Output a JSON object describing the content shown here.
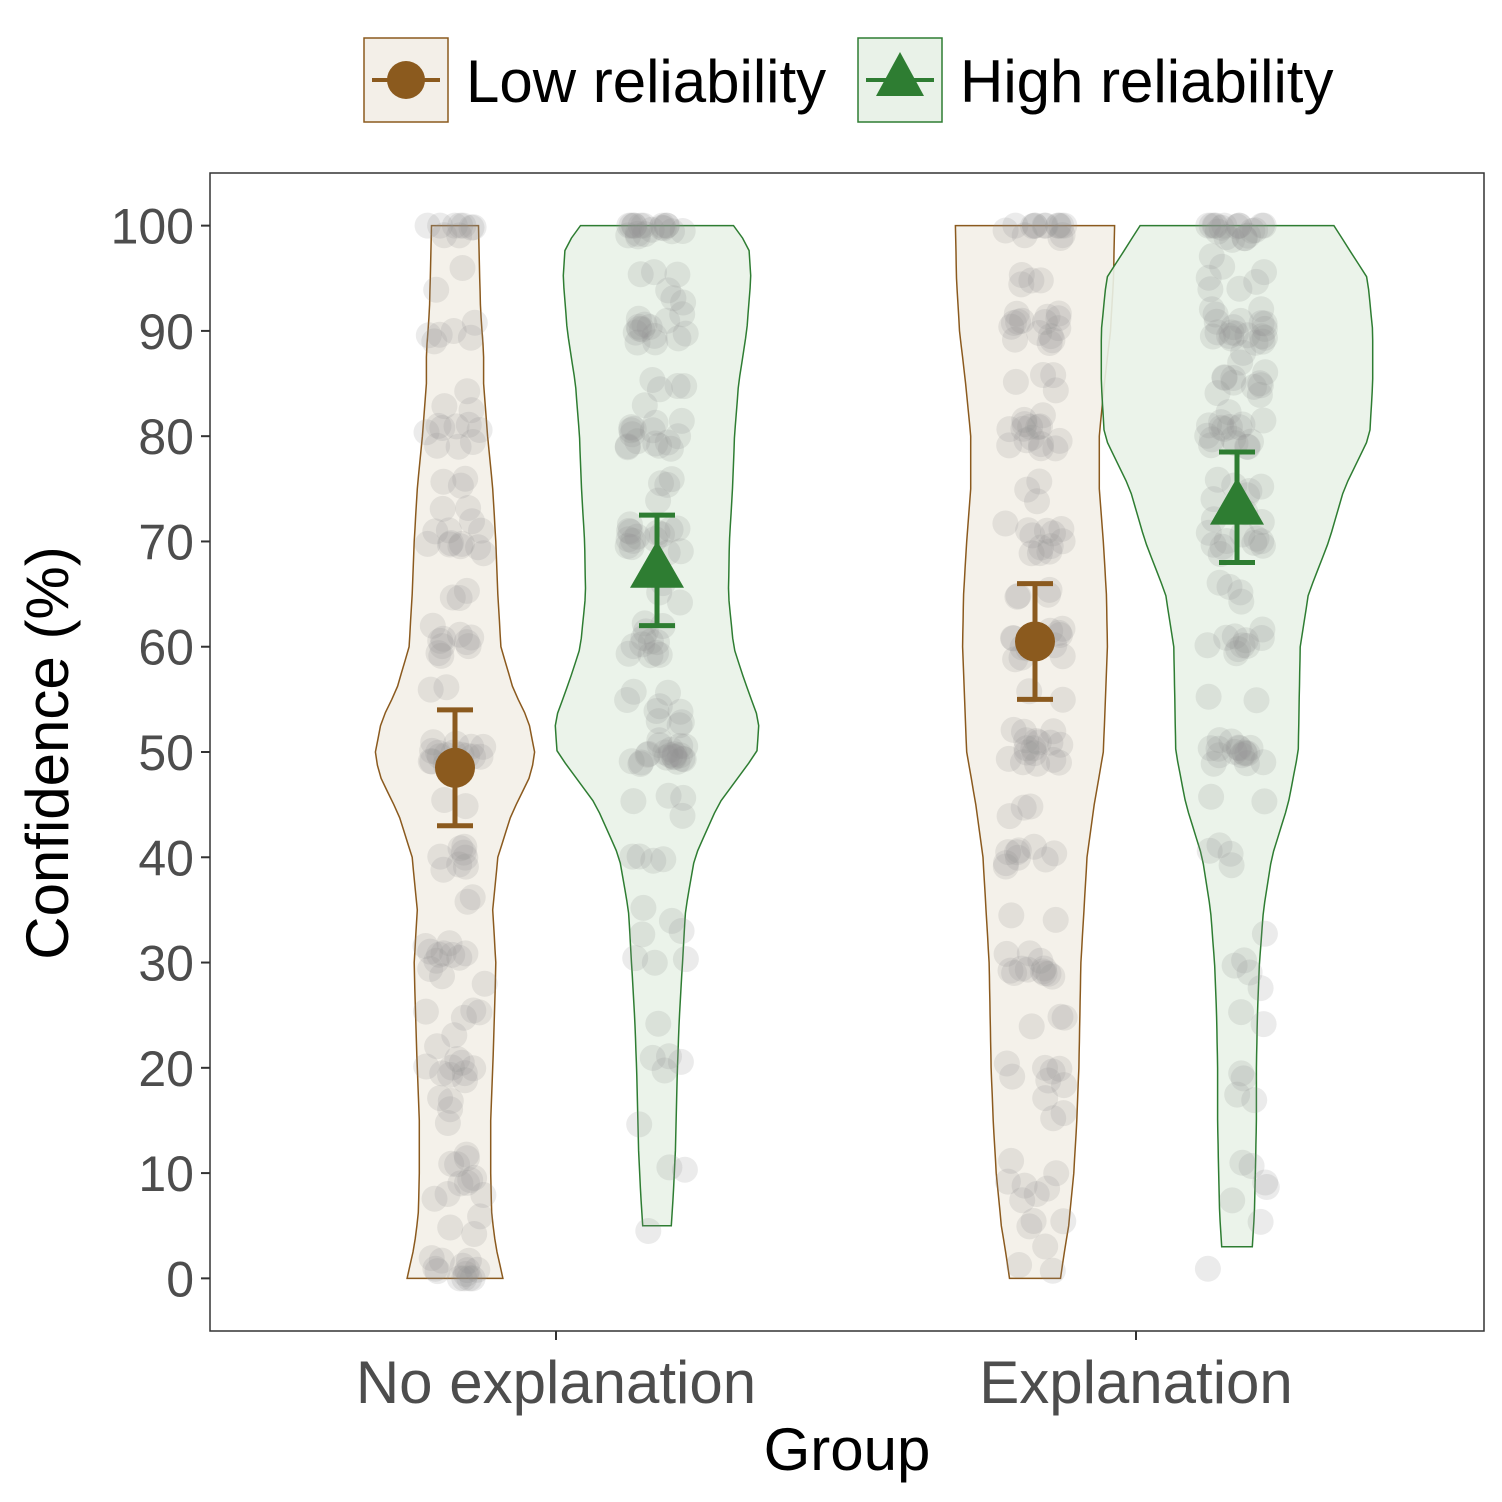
{
  "chart_data": {
    "type": "violin",
    "xlabel": "Group",
    "ylabel": "Confidence (%)",
    "ylim": [
      -5,
      105
    ],
    "yticks": [
      0,
      10,
      20,
      30,
      40,
      50,
      60,
      70,
      80,
      90,
      100
    ],
    "categories": [
      "No explanation",
      "Explanation"
    ],
    "legend_position": "top",
    "grid": false,
    "series": [
      {
        "name": "Low reliability",
        "color": "#8B5A1E",
        "fill": "#F3EFE8",
        "marker": "circle",
        "means": [
          48.5,
          60.5
        ],
        "ci": [
          [
            43,
            54
          ],
          [
            55,
            66
          ]
        ],
        "range": [
          [
            0,
            100
          ],
          [
            0,
            100
          ]
        ],
        "shape": [
          [
            [
              0,
              0.47
            ],
            [
              3,
              0.4
            ],
            [
              6,
              0.36
            ],
            [
              10,
              0.35
            ],
            [
              15,
              0.35
            ],
            [
              20,
              0.37
            ],
            [
              26,
              0.39
            ],
            [
              30,
              0.4
            ],
            [
              35,
              0.37
            ],
            [
              40,
              0.42
            ],
            [
              44,
              0.55
            ],
            [
              48,
              0.75
            ],
            [
              50,
              0.78
            ],
            [
              53,
              0.72
            ],
            [
              56,
              0.57
            ],
            [
              60,
              0.45
            ],
            [
              65,
              0.42
            ],
            [
              70,
              0.4
            ],
            [
              75,
              0.37
            ],
            [
              80,
              0.32
            ],
            [
              85,
              0.28
            ],
            [
              88,
              0.28
            ],
            [
              92,
              0.25
            ],
            [
              96,
              0.24
            ],
            [
              100,
              0.23
            ]
          ],
          [
            [
              0,
              0.25
            ],
            [
              2,
              0.28
            ],
            [
              5,
              0.33
            ],
            [
              10,
              0.38
            ],
            [
              15,
              0.41
            ],
            [
              20,
              0.43
            ],
            [
              25,
              0.44
            ],
            [
              30,
              0.45
            ],
            [
              35,
              0.48
            ],
            [
              40,
              0.51
            ],
            [
              45,
              0.58
            ],
            [
              50,
              0.67
            ],
            [
              55,
              0.69
            ],
            [
              60,
              0.71
            ],
            [
              65,
              0.7
            ],
            [
              70,
              0.67
            ],
            [
              75,
              0.63
            ],
            [
              80,
              0.63
            ],
            [
              85,
              0.68
            ],
            [
              90,
              0.74
            ],
            [
              95,
              0.77
            ],
            [
              100,
              0.78
            ]
          ]
        ]
      },
      {
        "name": "High reliability",
        "color": "#2E7D32",
        "fill": "#E9F2E8",
        "marker": "triangle",
        "means": [
          67.5,
          73.5
        ],
        "ci": [
          [
            62,
            72.5
          ],
          [
            68,
            78.5
          ]
        ],
        "range": [
          [
            5,
            100
          ],
          [
            3,
            100
          ]
        ],
        "shape": [
          [
            [
              5,
              0.14
            ],
            [
              8,
              0.16
            ],
            [
              12,
              0.18
            ],
            [
              16,
              0.19
            ],
            [
              20,
              0.2
            ],
            [
              25,
              0.22
            ],
            [
              30,
              0.25
            ],
            [
              35,
              0.28
            ],
            [
              40,
              0.37
            ],
            [
              45,
              0.6
            ],
            [
              50,
              0.98
            ],
            [
              53,
              1.0
            ],
            [
              57,
              0.85
            ],
            [
              60,
              0.75
            ],
            [
              65,
              0.7
            ],
            [
              70,
              0.71
            ],
            [
              75,
              0.74
            ],
            [
              80,
              0.76
            ],
            [
              85,
              0.8
            ],
            [
              90,
              0.88
            ],
            [
              95,
              0.92
            ],
            [
              98,
              0.9
            ],
            [
              100,
              0.75
            ]
          ],
          [
            [
              3,
              0.15
            ],
            [
              6,
              0.17
            ],
            [
              10,
              0.18
            ],
            [
              15,
              0.19
            ],
            [
              20,
              0.19
            ],
            [
              25,
              0.2
            ],
            [
              30,
              0.22
            ],
            [
              35,
              0.26
            ],
            [
              40,
              0.34
            ],
            [
              45,
              0.5
            ],
            [
              50,
              0.6
            ],
            [
              55,
              0.61
            ],
            [
              60,
              0.62
            ],
            [
              65,
              0.7
            ],
            [
              70,
              0.9
            ],
            [
              75,
              1.05
            ],
            [
              80,
              1.3
            ],
            [
              85,
              1.33
            ],
            [
              90,
              1.33
            ],
            [
              95,
              1.28
            ],
            [
              100,
              0.95
            ]
          ]
        ]
      }
    ],
    "jitter_points": {
      "color": "#999999",
      "levels": [
        0,
        1,
        2,
        5,
        8,
        10,
        12,
        15,
        18,
        20,
        22,
        25,
        28,
        30,
        32,
        35,
        38,
        40,
        42,
        45,
        48,
        50,
        52,
        55,
        58,
        60,
        62,
        65,
        68,
        70,
        72,
        75,
        78,
        80,
        82,
        85,
        88,
        90,
        92,
        95,
        98,
        100
      ],
      "weights": [
        [
          [
            0,
            10
          ],
          [
            2,
            3
          ],
          [
            5,
            3
          ],
          [
            8,
            3
          ],
          [
            10,
            6
          ],
          [
            12,
            2
          ],
          [
            15,
            2
          ],
          [
            18,
            2
          ],
          [
            20,
            9
          ],
          [
            22,
            2
          ],
          [
            25,
            4
          ],
          [
            28,
            2
          ],
          [
            30,
            8
          ],
          [
            32,
            2
          ],
          [
            35,
            2
          ],
          [
            40,
            8
          ],
          [
            45,
            2
          ],
          [
            50,
            16
          ],
          [
            55,
            2
          ],
          [
            60,
            8
          ],
          [
            62,
            2
          ],
          [
            65,
            3
          ],
          [
            70,
            10
          ],
          [
            72,
            3
          ],
          [
            75,
            3
          ],
          [
            80,
            9
          ],
          [
            82,
            2
          ],
          [
            85,
            1
          ],
          [
            90,
            6
          ],
          [
            95,
            2
          ],
          [
            100,
            9
          ]
        ],
        [
          [
            5,
            1
          ],
          [
            10,
            2
          ],
          [
            15,
            1
          ],
          [
            20,
            4
          ],
          [
            25,
            1
          ],
          [
            30,
            3
          ],
          [
            32,
            2
          ],
          [
            35,
            2
          ],
          [
            40,
            4
          ],
          [
            45,
            4
          ],
          [
            50,
            20
          ],
          [
            52,
            3
          ],
          [
            55,
            6
          ],
          [
            60,
            9
          ],
          [
            62,
            3
          ],
          [
            65,
            3
          ],
          [
            70,
            12
          ],
          [
            72,
            3
          ],
          [
            75,
            4
          ],
          [
            80,
            12
          ],
          [
            82,
            4
          ],
          [
            85,
            4
          ],
          [
            90,
            12
          ],
          [
            92,
            4
          ],
          [
            95,
            4
          ],
          [
            100,
            18
          ]
        ],
        [
          [
            0,
            1
          ],
          [
            2,
            2
          ],
          [
            5,
            3
          ],
          [
            8,
            3
          ],
          [
            10,
            4
          ],
          [
            15,
            2
          ],
          [
            18,
            3
          ],
          [
            20,
            5
          ],
          [
            25,
            3
          ],
          [
            28,
            2
          ],
          [
            30,
            10
          ],
          [
            35,
            2
          ],
          [
            40,
            9
          ],
          [
            45,
            3
          ],
          [
            50,
            14
          ],
          [
            52,
            3
          ],
          [
            55,
            2
          ],
          [
            60,
            10
          ],
          [
            62,
            3
          ],
          [
            65,
            4
          ],
          [
            70,
            9
          ],
          [
            72,
            3
          ],
          [
            75,
            3
          ],
          [
            80,
            12
          ],
          [
            82,
            3
          ],
          [
            85,
            4
          ],
          [
            90,
            12
          ],
          [
            92,
            3
          ],
          [
            95,
            4
          ],
          [
            100,
            14
          ]
        ],
        [
          [
            2,
            1
          ],
          [
            5,
            1
          ],
          [
            8,
            3
          ],
          [
            10,
            2
          ],
          [
            18,
            2
          ],
          [
            20,
            2
          ],
          [
            25,
            2
          ],
          [
            28,
            2
          ],
          [
            30,
            2
          ],
          [
            32,
            1
          ],
          [
            40,
            4
          ],
          [
            45,
            2
          ],
          [
            50,
            16
          ],
          [
            55,
            2
          ],
          [
            60,
            8
          ],
          [
            62,
            2
          ],
          [
            65,
            4
          ],
          [
            70,
            10
          ],
          [
            72,
            3
          ],
          [
            75,
            6
          ],
          [
            80,
            14
          ],
          [
            82,
            3
          ],
          [
            85,
            10
          ],
          [
            88,
            3
          ],
          [
            90,
            16
          ],
          [
            92,
            3
          ],
          [
            95,
            6
          ],
          [
            98,
            2
          ],
          [
            100,
            18
          ]
        ]
      ]
    }
  }
}
